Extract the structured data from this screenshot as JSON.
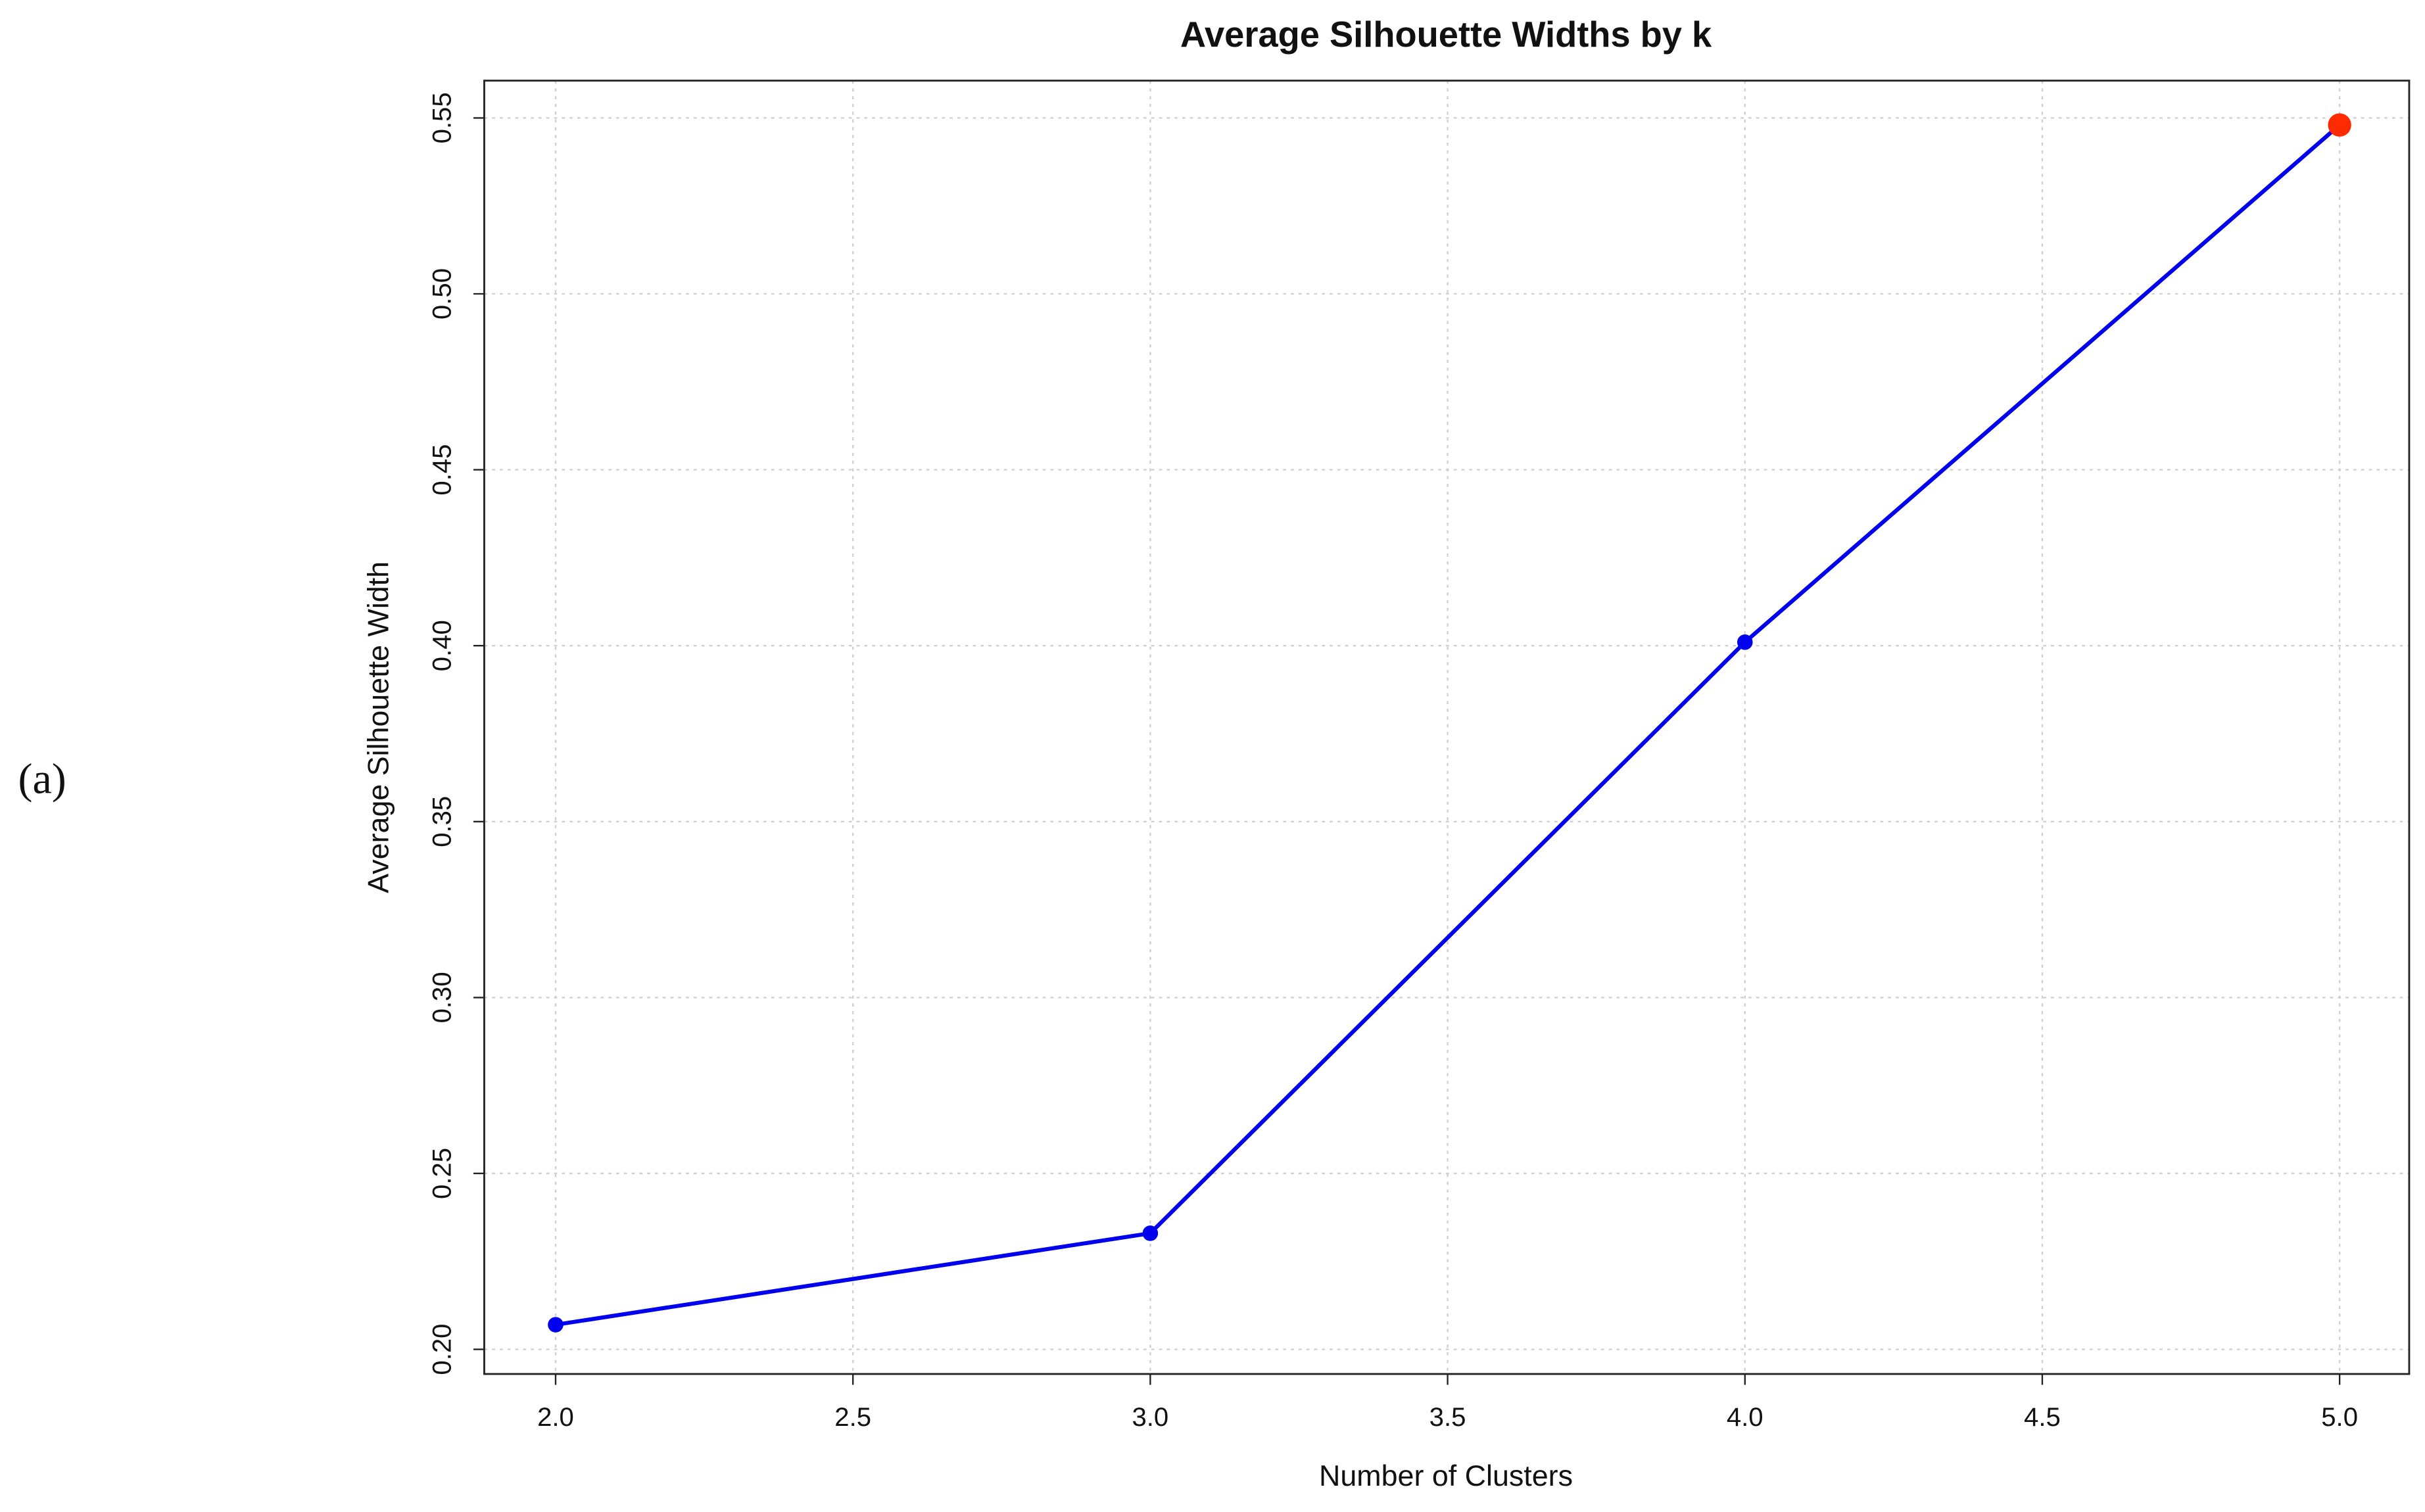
{
  "panel_label": "(a)",
  "chart_data": {
    "type": "line",
    "title": "Average Silhouette Widths by k",
    "x_label": "Number of Clusters",
    "y_label": "Average Silhouette Width",
    "x": [
      2,
      3,
      4,
      5
    ],
    "series": [
      {
        "name": "Average Silhouette Width",
        "color": "#0000ee",
        "values": [
          0.207,
          0.233,
          0.401,
          0.548
        ]
      }
    ],
    "marker_colors": [
      "#0000ee",
      "#0000ee",
      "#0000ee",
      "#ff2a00"
    ],
    "xlim": [
      1.88,
      5.117
    ],
    "ylim": [
      0.193,
      0.5606
    ],
    "xticks": [
      {
        "value": 2,
        "label": "2.0"
      },
      2.5,
      {
        "value": 3,
        "label": "3.0"
      },
      3.5,
      {
        "value": 4,
        "label": "4.0"
      },
      4.5,
      {
        "value": 5,
        "label": "5.0"
      }
    ],
    "yticks": [
      {
        "value": 0.2,
        "label": "0.20"
      },
      0.25,
      {
        "value": 0.3,
        "label": "0.30"
      },
      0.35,
      {
        "value": 0.4,
        "label": "0.40"
      },
      0.45,
      {
        "value": 0.5,
        "label": "0.50"
      },
      0.55
    ],
    "grid": true,
    "legend": false
  }
}
